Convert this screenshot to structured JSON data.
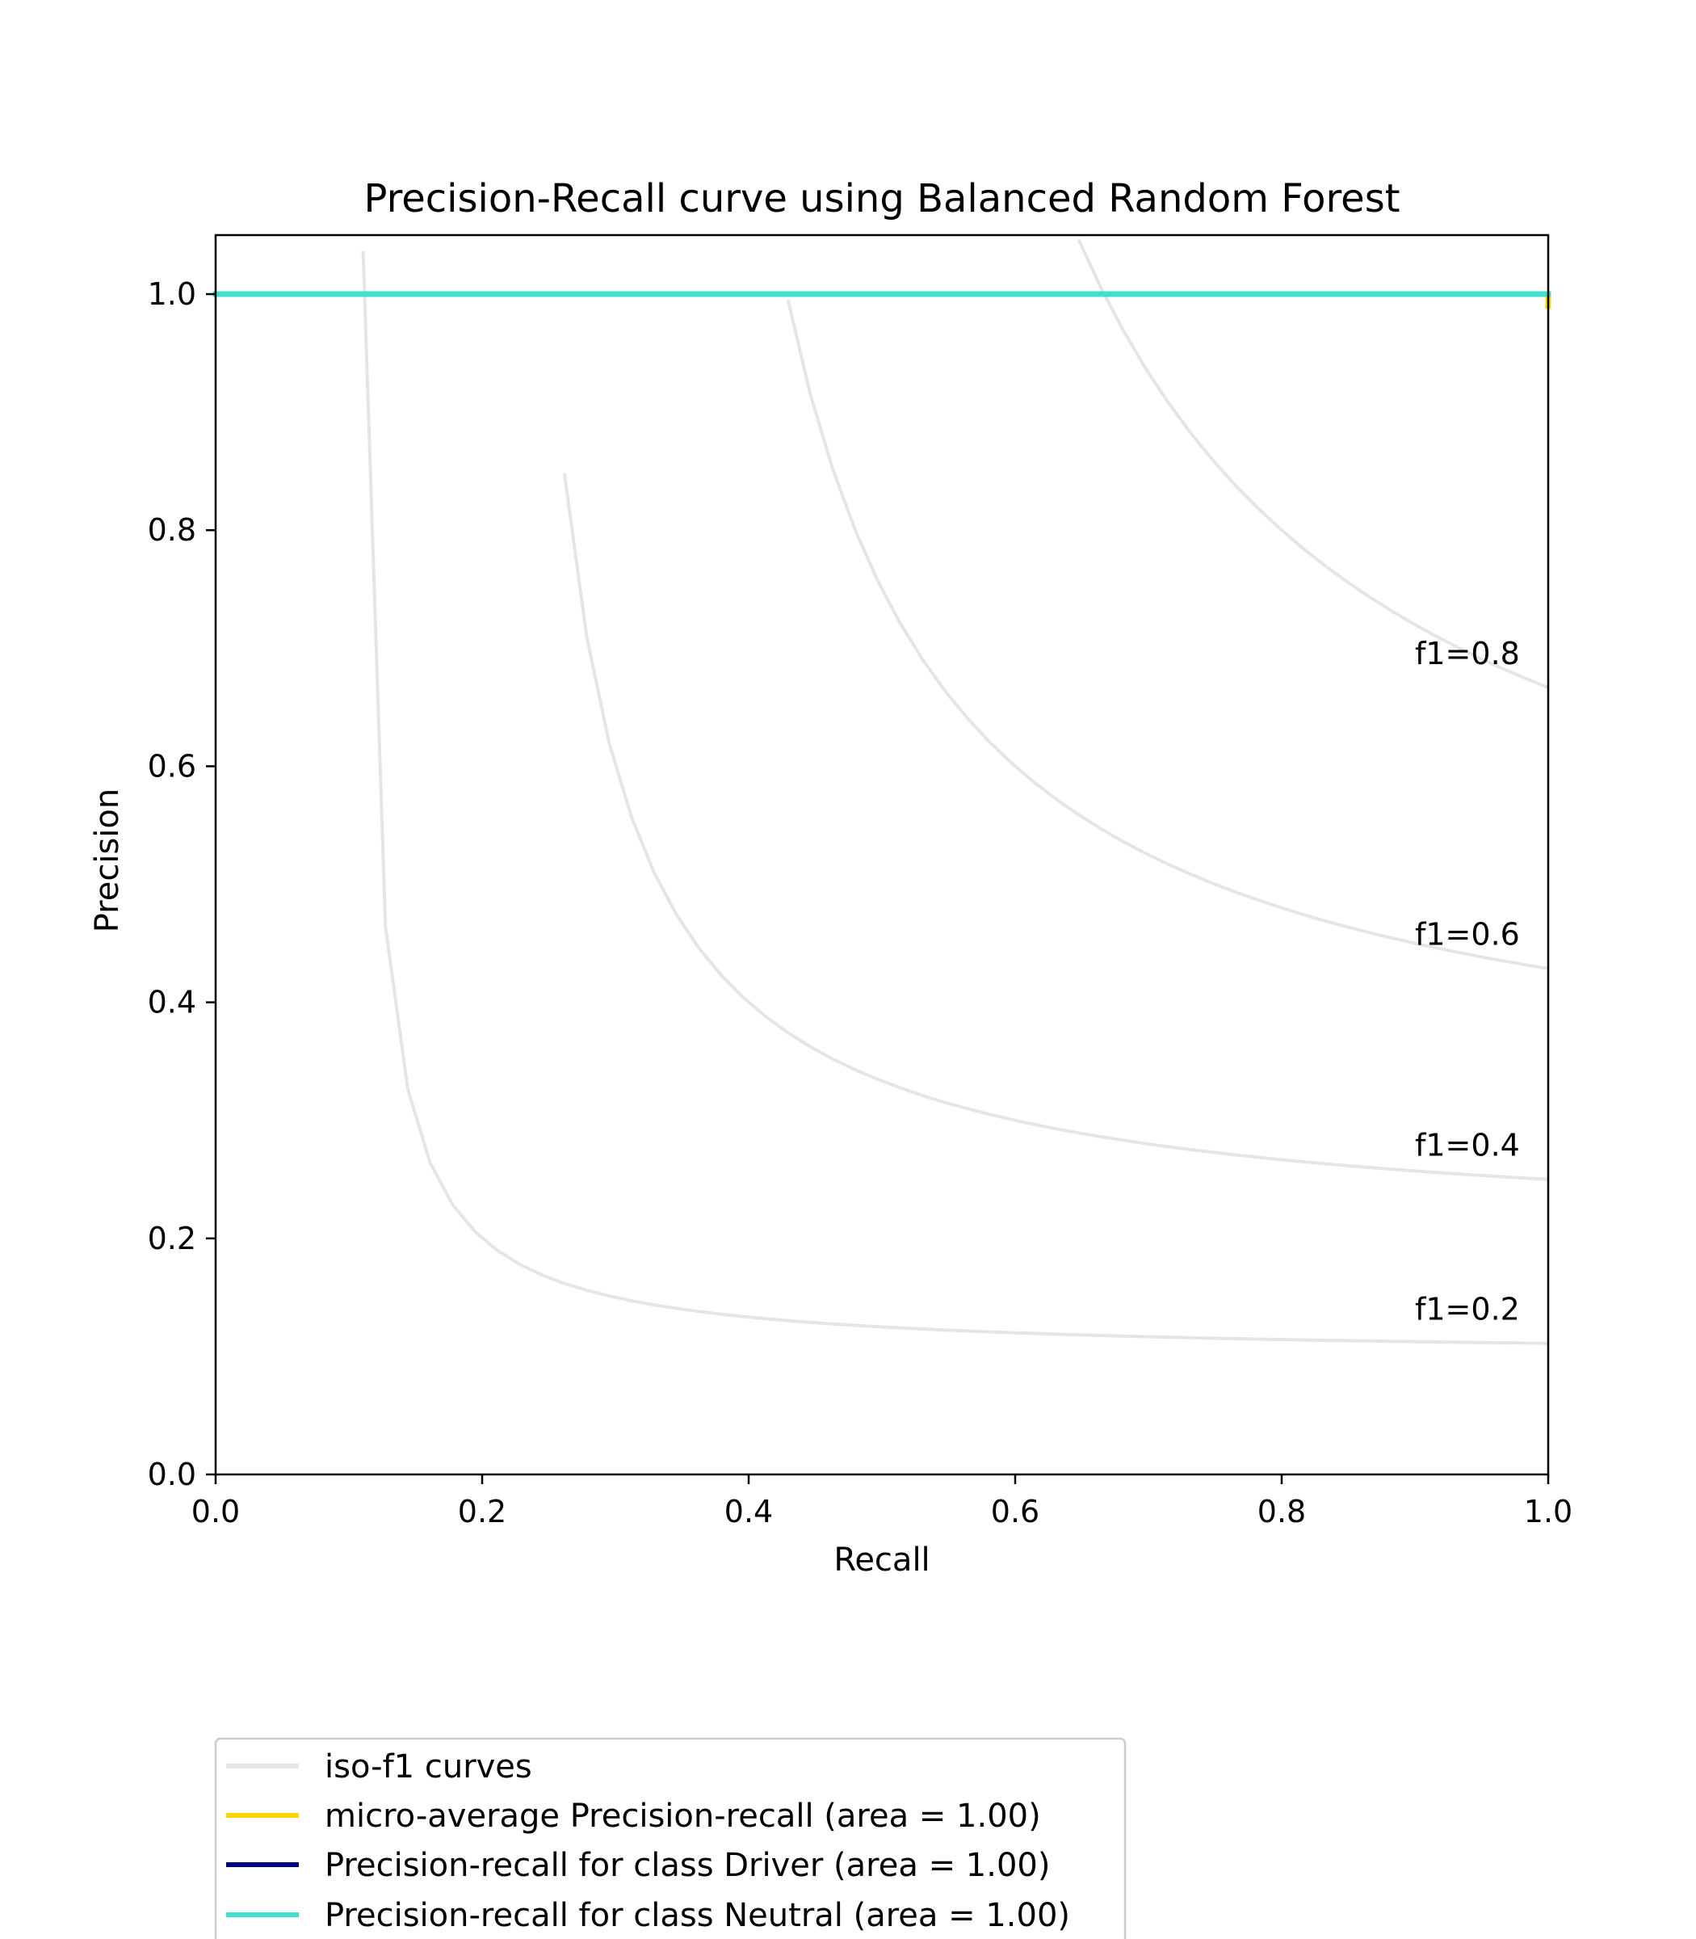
{
  "chart_data": {
    "type": "line",
    "title": "Precision-Recall curve using Balanced Random Forest",
    "xlabel": "Recall",
    "ylabel": "Precision",
    "xlim": [
      0.0,
      1.0
    ],
    "ylim": [
      0.0,
      1.05
    ],
    "xticks": [
      "0.0",
      "0.2",
      "0.4",
      "0.6",
      "0.8",
      "1.0"
    ],
    "yticks": [
      "0.0",
      "0.2",
      "0.4",
      "0.6",
      "0.8",
      "1.0"
    ],
    "grid": false,
    "legend_position": "below plot, left",
    "iso_f1": {
      "legend_label": "iso-f1 curves",
      "color": "#e5e5e5",
      "levels": [
        {
          "f1": 0.2,
          "label": "f1=0.2"
        },
        {
          "f1": 0.4,
          "label": "f1=0.4"
        },
        {
          "f1": 0.6,
          "label": "f1=0.6"
        },
        {
          "f1": 0.8,
          "label": "f1=0.8"
        }
      ]
    },
    "series": [
      {
        "name": "micro-average Precision-recall (area = 1.00)",
        "color": "#ffd700",
        "x": [
          0.0,
          1.0,
          1.0
        ],
        "y": [
          1.0,
          1.0,
          0.99
        ]
      },
      {
        "name": "Precision-recall for class Driver (area = 1.00)",
        "color": "#000080",
        "x": [
          0.0,
          1.0
        ],
        "y": [
          1.0,
          1.0
        ]
      },
      {
        "name": "Precision-recall for class Neutral (area = 1.00)",
        "color": "#40e0d0",
        "x": [
          0.0,
          1.0
        ],
        "y": [
          1.0,
          1.0
        ]
      }
    ]
  }
}
